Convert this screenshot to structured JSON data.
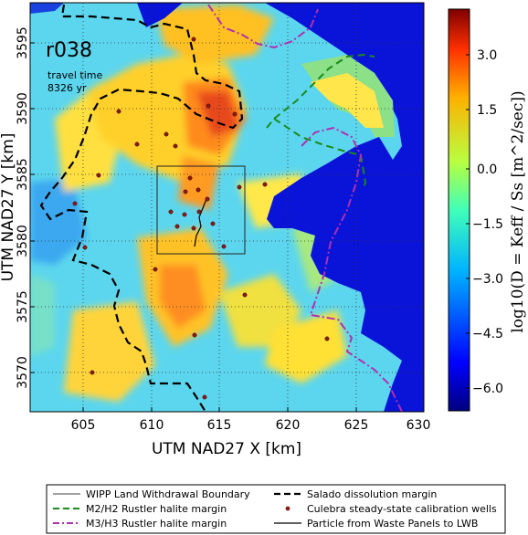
{
  "map": {
    "run_id": "r038",
    "travel_time_label": "travel time",
    "travel_time_value": "8326 yr",
    "x_axis_title": "UTM NAD27 X [km]",
    "y_axis_title": "UTM NAD27 Y [km]",
    "x_ticks": [
      "605",
      "610",
      "615",
      "620",
      "625",
      "630"
    ],
    "y_ticks": [
      "3570",
      "3575",
      "3580",
      "3585",
      "3590",
      "3595"
    ],
    "xlim": [
      601.5,
      630
    ],
    "ylim": [
      3566.5,
      3597.5
    ]
  },
  "colorbar": {
    "title": "log10(D = Keff / Ss [m^2/sec])",
    "ticks": [
      "3.0",
      "1.5",
      "0.0",
      "−1.5",
      "−3.0",
      "−4.5",
      "−6.0"
    ],
    "tick_values": [
      3.0,
      1.5,
      0.0,
      -1.5,
      -3.0,
      -4.5,
      -6.0
    ],
    "range": [
      -7.0,
      4.0
    ],
    "colormap": "jet"
  },
  "legend": {
    "items": [
      {
        "label": "WIPP Land Withdrawal Boundary",
        "style": "thin-solid",
        "color": "#000000"
      },
      {
        "label": "Salado dissolution margin",
        "style": "thick-dashed",
        "color": "#000000"
      },
      {
        "label": "M2/H2 Rustler halite margin",
        "style": "dashed",
        "color": "#1a8a1a"
      },
      {
        "label": "Culebra steady-state calibration wells",
        "style": "marker",
        "color": "#8b1a1a"
      },
      {
        "label": "M3/H3 Rustler halite margin",
        "style": "dash-dot",
        "color": "#b030b0"
      },
      {
        "label": "Particle from Waste Panels to LWB",
        "style": "solid",
        "color": "#000000"
      }
    ]
  },
  "colors": {
    "deep_blue": "#0a14d8",
    "cyan": "#54d8f0",
    "green": "#8de08a",
    "yellow": "#ffe233",
    "orange": "#ff9a1c",
    "red": "#e8361b",
    "well": "#8b1a1a"
  }
}
